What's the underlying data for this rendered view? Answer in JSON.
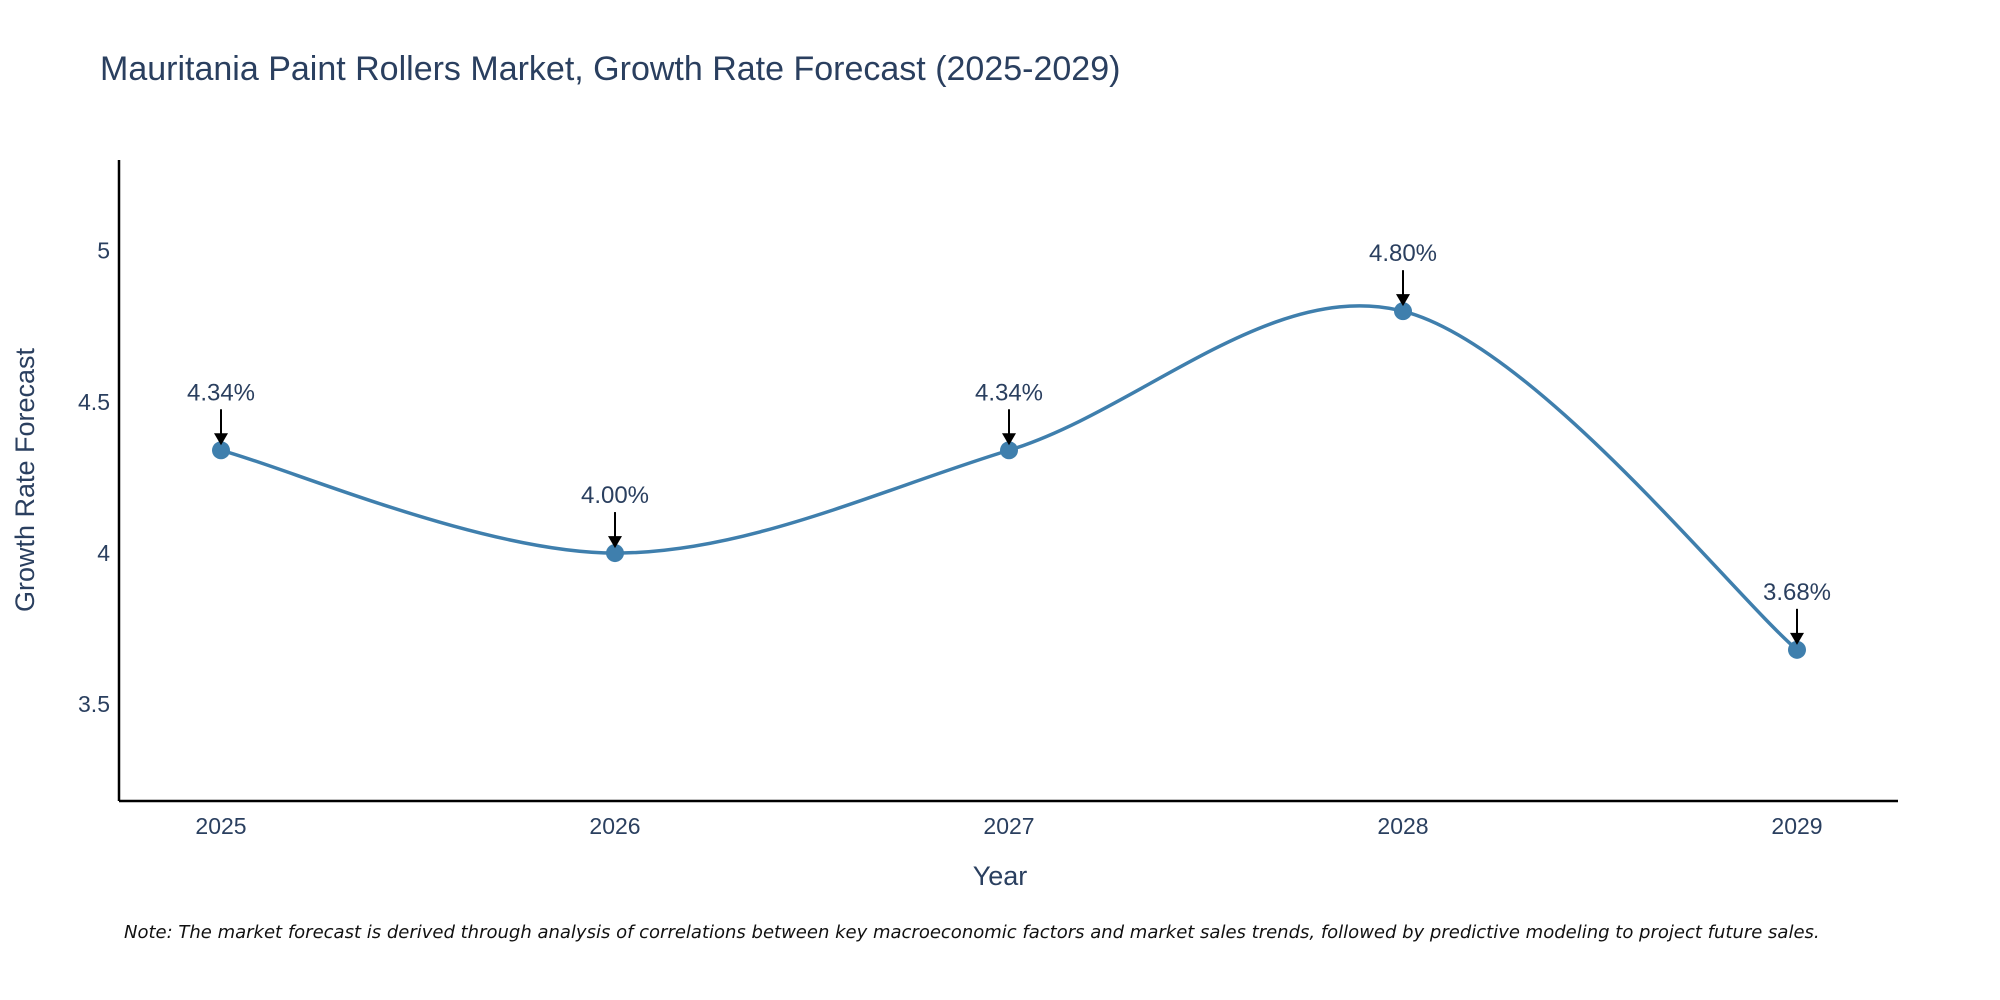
{
  "chart_data": {
    "type": "line",
    "title": "Mauritania Paint Rollers Market, Growth Rate Forecast (2025-2029)",
    "xlabel": "Year",
    "ylabel": "Growth Rate Forecast",
    "categories": [
      "2025",
      "2026",
      "2027",
      "2028",
      "2029"
    ],
    "series": [
      {
        "name": "Growth Rate Forecast",
        "values": [
          4.34,
          4.0,
          4.34,
          4.8,
          3.68
        ],
        "labels": [
          "4.34%",
          "4.00%",
          "4.34%",
          "4.80%",
          "3.68%"
        ],
        "line_shape": "spline"
      }
    ],
    "ylim": [
      3.18,
      5.3
    ],
    "yticks": [
      3.5,
      4,
      4.5,
      5
    ],
    "ytick_labels": [
      "3.5",
      "4",
      "4.5",
      "5"
    ],
    "grid": false,
    "line_color": "#3f7fad",
    "marker_color": "#3f7fad",
    "arrow_color": "#000000",
    "note": "Note: The market forecast is derived through analysis of correlations between key macroeconomic factors and market sales trends, followed by predictive modeling to project future sales."
  }
}
